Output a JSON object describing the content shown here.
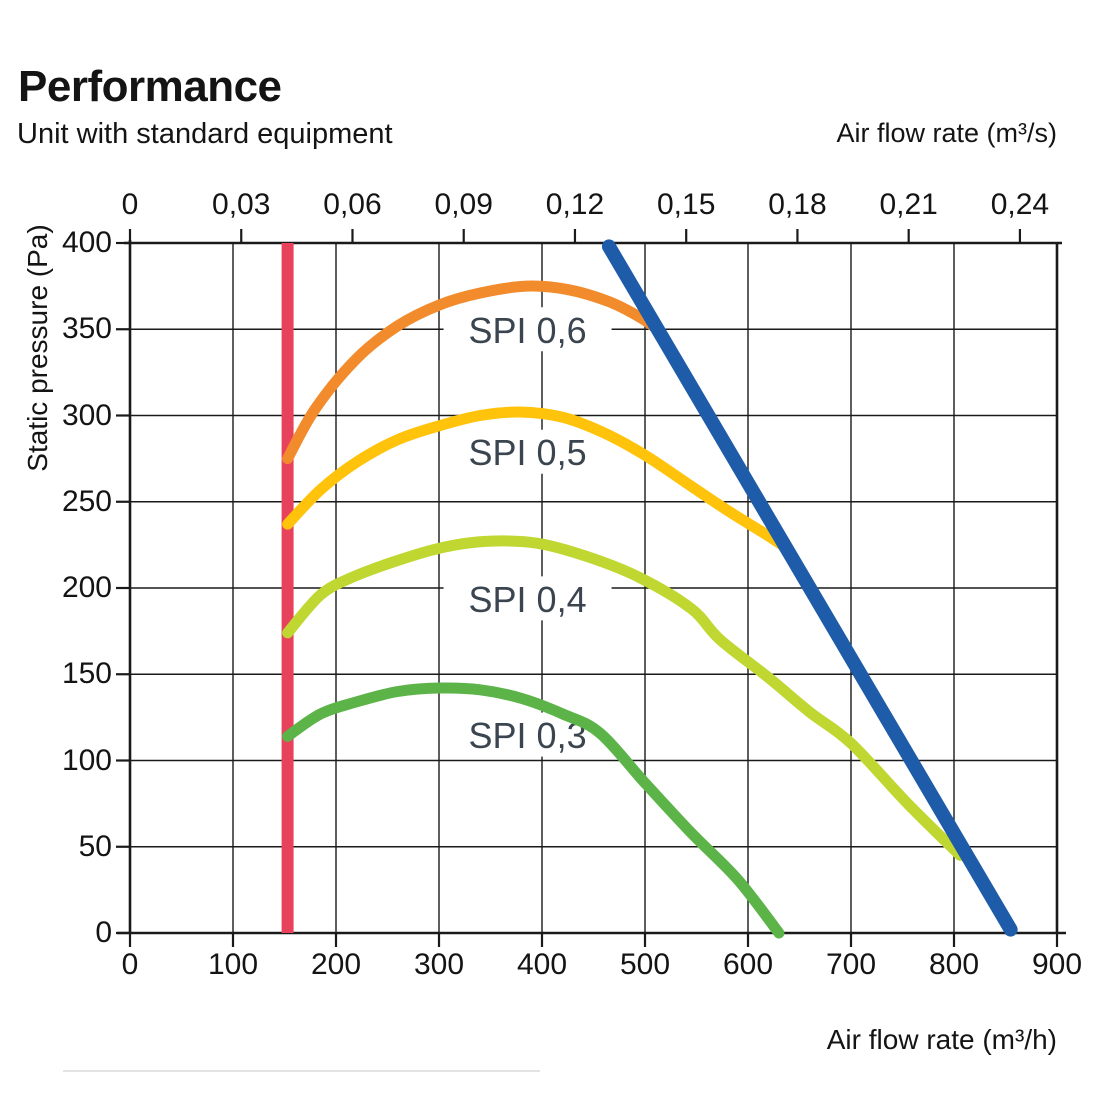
{
  "header": {
    "title": "Performance",
    "subtitle": "Unit with standard equipment"
  },
  "chart_data": {
    "type": "line",
    "title": "Performance",
    "subtitle": "Unit with standard equipment",
    "grid": true,
    "legend": "inline-curve-labels",
    "x_bottom": {
      "label": "Air flow rate (m³/h)",
      "min": 0,
      "max": 900,
      "ticks": [
        0,
        100,
        200,
        300,
        400,
        500,
        600,
        700,
        800,
        900
      ]
    },
    "x_top": {
      "label": "Air flow rate (m³/s)",
      "ticks": [
        {
          "label": "0",
          "m3s": 0
        },
        {
          "label": "0,03",
          "m3s": 0.03
        },
        {
          "label": "0,06",
          "m3s": 0.06
        },
        {
          "label": "0,09",
          "m3s": 0.09
        },
        {
          "label": "0,12",
          "m3s": 0.12
        },
        {
          "label": "0,15",
          "m3s": 0.15
        },
        {
          "label": "0,18",
          "m3s": 0.18
        },
        {
          "label": "0,21",
          "m3s": 0.21
        },
        {
          "label": "0,24",
          "m3s": 0.24
        }
      ]
    },
    "y": {
      "label": "Static pressure (Pa)",
      "min": 0,
      "max": 400,
      "ticks": [
        400,
        350,
        300,
        250,
        200,
        150,
        100,
        50,
        0
      ]
    },
    "series": [
      {
        "id": "spi-0-6",
        "name": "SPI 0,6",
        "color": "#F28B2C",
        "width": 11,
        "smooth": true,
        "points": [
          [
            153,
            275
          ],
          [
            180,
            304
          ],
          [
            220,
            333
          ],
          [
            260,
            352
          ],
          [
            300,
            364
          ],
          [
            340,
            371
          ],
          [
            385,
            375
          ],
          [
            425,
            373
          ],
          [
            465,
            366
          ],
          [
            495,
            357
          ],
          [
            512,
            350
          ]
        ]
      },
      {
        "id": "spi-0-5",
        "name": "SPI 0,5",
        "color": "#FFC30B",
        "width": 11,
        "smooth": true,
        "points": [
          [
            153,
            237
          ],
          [
            185,
            257
          ],
          [
            220,
            273
          ],
          [
            260,
            286
          ],
          [
            300,
            294
          ],
          [
            340,
            300
          ],
          [
            378,
            302
          ],
          [
            420,
            299
          ],
          [
            460,
            290
          ],
          [
            500,
            277
          ],
          [
            540,
            261
          ],
          [
            580,
            245
          ],
          [
            615,
            232
          ],
          [
            633,
            225
          ]
        ]
      },
      {
        "id": "spi-0-4",
        "name": "SPI 0,4",
        "color": "#BFD730",
        "width": 11,
        "smooth": true,
        "points": [
          [
            153,
            174
          ],
          [
            185,
            196
          ],
          [
            215,
            206
          ],
          [
            255,
            215
          ],
          [
            300,
            223
          ],
          [
            345,
            227
          ],
          [
            395,
            226
          ],
          [
            445,
            218
          ],
          [
            495,
            206
          ],
          [
            545,
            188
          ],
          [
            573,
            170
          ],
          [
            620,
            148
          ],
          [
            660,
            128
          ],
          [
            700,
            110
          ],
          [
            755,
            75
          ],
          [
            806,
            45
          ]
        ]
      },
      {
        "id": "spi-0-3",
        "name": "SPI 0,3",
        "color": "#5CB449",
        "width": 11,
        "smooth": true,
        "points": [
          [
            153,
            114
          ],
          [
            185,
            127
          ],
          [
            220,
            134
          ],
          [
            260,
            140
          ],
          [
            300,
            142
          ],
          [
            340,
            141
          ],
          [
            380,
            136
          ],
          [
            420,
            127
          ],
          [
            456,
            116
          ],
          [
            500,
            87
          ],
          [
            545,
            58
          ],
          [
            590,
            31
          ],
          [
            630,
            0
          ]
        ]
      },
      {
        "id": "max-capacity-line",
        "name": "max-capacity-line",
        "color": "#1E5BA9",
        "width": 14,
        "smooth": false,
        "points": [
          [
            465,
            398
          ],
          [
            855,
            2
          ]
        ]
      }
    ],
    "reference_lines": [
      {
        "id": "min-airflow-line",
        "orientation": "vertical",
        "x": 153,
        "color": "#E8415C",
        "width": 12
      }
    ],
    "annotations": [
      {
        "id": "label-spi-0-6",
        "text": "SPI 0,6",
        "q": 386,
        "p": 350
      },
      {
        "id": "label-spi-0-5",
        "text": "SPI 0,5",
        "q": 386,
        "p": 279
      },
      {
        "id": "label-spi-0-4",
        "text": "SPI 0,4",
        "q": 386,
        "p": 194
      },
      {
        "id": "label-spi-0-3",
        "text": "SPI 0,3",
        "q": 386,
        "p": 115
      }
    ],
    "annotation_text_color": "#3A4550",
    "axis_color": "#1A1A1A"
  }
}
